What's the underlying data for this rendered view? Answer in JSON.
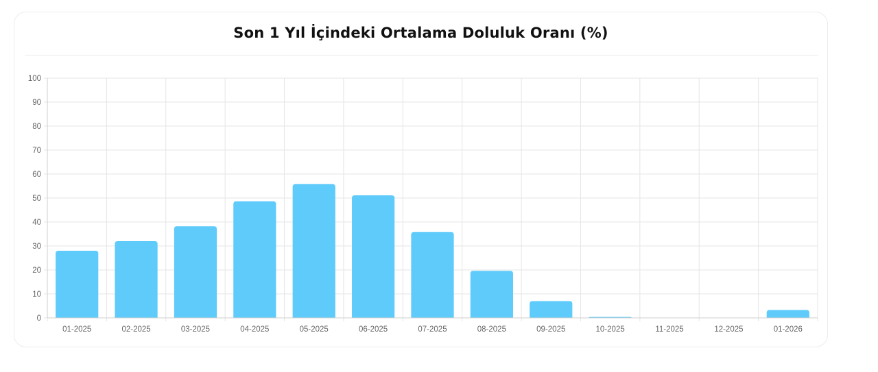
{
  "title": "Son 1 Yıl İçindeki Ortalama Doluluk Oranı (%)",
  "chart_data": {
    "type": "bar",
    "title": "Son 1 Yıl İçindeki Ortalama Doluluk Oranı (%)",
    "categories": [
      "01-2025",
      "02-2025",
      "03-2025",
      "04-2025",
      "05-2025",
      "06-2025",
      "07-2025",
      "08-2025",
      "09-2025",
      "10-2025",
      "11-2025",
      "12-2025",
      "01-2026"
    ],
    "values": [
      28,
      32,
      38.2,
      48.6,
      55.8,
      51.1,
      35.8,
      19.6,
      7,
      0.4,
      0,
      0,
      3.3
    ],
    "xlabel": "",
    "ylabel": "",
    "ylim": [
      0,
      100
    ],
    "yticks": [
      "0",
      "10",
      "20",
      "30",
      "40",
      "50",
      "60",
      "70",
      "80",
      "90",
      "100"
    ],
    "grid": true,
    "legend": "none",
    "bar_color": "#5ecbfb"
  }
}
